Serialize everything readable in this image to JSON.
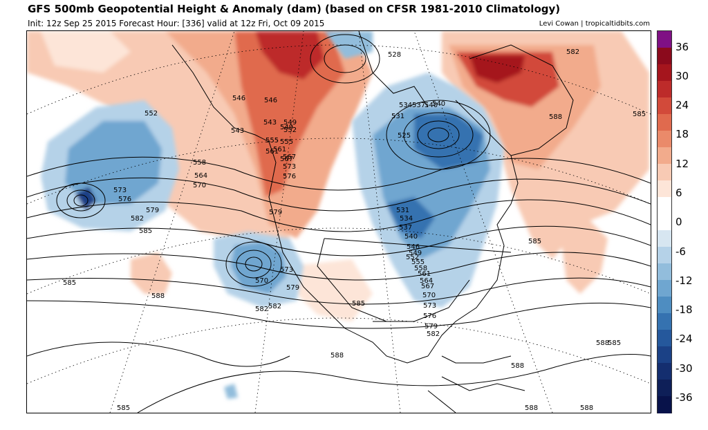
{
  "header": {
    "title": "GFS 500mb Geopotential Height & Anomaly (dam) (based on CFSR 1981-2010 Climatology)",
    "subtitle": "Init: 12z Sep 25 2015   Forecast Hour: [336]   valid at 12z Fri, Oct 09 2015",
    "credit": "Levi Cowan | tropicaltidbits.com"
  },
  "colorbar": {
    "labels": [
      "36",
      "30",
      "24",
      "18",
      "12",
      "6",
      "0",
      "-6",
      "-12",
      "-18",
      "-24",
      "-30",
      "-36"
    ],
    "colors": [
      "#7f1084",
      "#8b0a1c",
      "#a5151d",
      "#bd2b2a",
      "#d24a3a",
      "#e06a4e",
      "#ea8a6a",
      "#f2ab8c",
      "#f8cab4",
      "#fde5d8",
      "#ffffff",
      "#ffffff",
      "#d7e6f1",
      "#b5d2e8",
      "#92bddc",
      "#6fa6d0",
      "#4e8dc1",
      "#3572b0",
      "#25589c",
      "#1b4186",
      "#142e6f",
      "#0e1f58",
      "#08124a"
    ]
  },
  "map": {
    "contour_labels": [
      {
        "text": "528"
      },
      {
        "text": "531"
      },
      {
        "text": "534"
      },
      {
        "text": "537"
      },
      {
        "text": "540"
      },
      {
        "text": "543"
      },
      {
        "text": "546"
      },
      {
        "text": "549"
      },
      {
        "text": "552"
      },
      {
        "text": "555"
      },
      {
        "text": "558"
      },
      {
        "text": "561"
      },
      {
        "text": "564"
      },
      {
        "text": "567"
      },
      {
        "text": "570"
      },
      {
        "text": "573"
      },
      {
        "text": "576"
      },
      {
        "text": "579"
      },
      {
        "text": "582"
      },
      {
        "text": "585"
      },
      {
        "text": "588"
      },
      {
        "text": "525"
      },
      {
        "text": "540"
      },
      {
        "text": "543"
      },
      {
        "text": "546"
      },
      {
        "text": "549"
      },
      {
        "text": "552"
      },
      {
        "text": "555"
      },
      {
        "text": "561"
      },
      {
        "text": "567"
      },
      {
        "text": "573"
      },
      {
        "text": "576"
      },
      {
        "text": "579"
      },
      {
        "text": "582"
      },
      {
        "text": "585"
      },
      {
        "text": "585"
      },
      {
        "text": "588"
      },
      {
        "text": "585"
      },
      {
        "text": "588"
      },
      {
        "text": "588"
      },
      {
        "text": "588"
      },
      {
        "text": "585"
      },
      {
        "text": "582"
      },
      {
        "text": "585"
      },
      {
        "text": "570"
      },
      {
        "text": "573"
      },
      {
        "text": "579"
      },
      {
        "text": "582"
      },
      {
        "text": "585"
      },
      {
        "text": "531"
      },
      {
        "text": "534"
      },
      {
        "text": "537"
      },
      {
        "text": "540"
      },
      {
        "text": "546"
      },
      {
        "text": "549"
      },
      {
        "text": "552"
      },
      {
        "text": "555"
      },
      {
        "text": "558"
      },
      {
        "text": "561"
      },
      {
        "text": "564"
      },
      {
        "text": "567"
      },
      {
        "text": "570"
      },
      {
        "text": "573"
      },
      {
        "text": "576"
      },
      {
        "text": "579"
      },
      {
        "text": "582"
      },
      {
        "text": "588"
      },
      {
        "text": "588"
      }
    ]
  }
}
